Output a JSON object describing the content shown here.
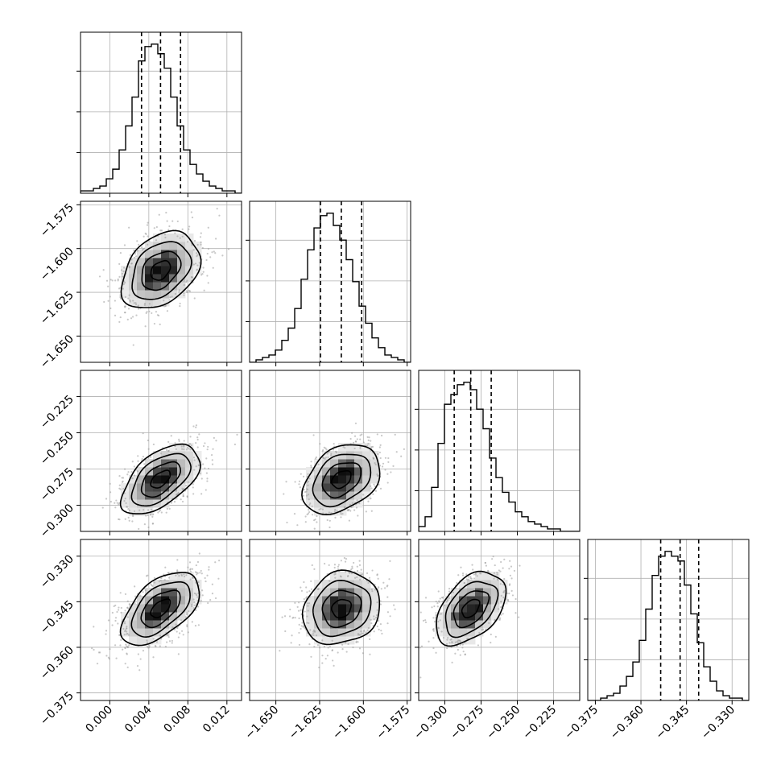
{
  "chart_data": {
    "type": "corner",
    "grid": true,
    "params": [
      {
        "range": [
          -0.003,
          0.0135
        ],
        "ticks": [
          0.0,
          0.004,
          0.008,
          0.012
        ],
        "tick_labels": [
          "0.000",
          "0.004",
          "0.008",
          "0.012"
        ],
        "quantiles": [
          0.00325,
          0.0052,
          0.00725
        ],
        "mean": 0.0052,
        "sd": 0.002,
        "hist_bins": 25,
        "hist_counts": [
          1,
          1,
          2,
          3,
          6,
          10,
          18,
          28,
          40,
          55,
          61,
          62,
          58,
          52,
          40,
          28,
          18,
          12,
          8,
          5,
          3,
          2,
          1,
          1,
          0
        ]
      },
      {
        "range": [
          -1.665,
          -1.573
        ],
        "ticks": [
          -1.65,
          -1.625,
          -1.6,
          -1.575
        ],
        "tick_labels": [
          "−1.650",
          "−1.625",
          "−1.600",
          "−1.575"
        ],
        "quantiles": [
          -1.6245,
          -1.6126,
          -1.601
        ],
        "mean": -1.6125,
        "sd": 0.011,
        "hist_bins": 25,
        "hist_counts": [
          0,
          1,
          2,
          3,
          5,
          9,
          14,
          22,
          34,
          46,
          55,
          60,
          61,
          56,
          50,
          42,
          33,
          23,
          16,
          10,
          6,
          3,
          2,
          1,
          0
        ]
      },
      {
        "range": [
          -0.318,
          -0.207
        ],
        "ticks": [
          -0.3,
          -0.275,
          -0.25,
          -0.225
        ],
        "tick_labels": [
          "−0.300",
          "−0.275",
          "−0.250",
          "−0.225"
        ],
        "quantiles": [
          -0.2935,
          -0.2821,
          -0.268
        ],
        "mean": -0.2821,
        "sd": 0.012,
        "hist_bins": 25,
        "hist_counts": [
          2,
          6,
          18,
          36,
          52,
          56,
          60,
          61,
          58,
          50,
          42,
          30,
          22,
          16,
          12,
          8,
          6,
          4,
          3,
          2,
          1,
          1,
          0,
          0,
          0
        ]
      },
      {
        "range": [
          -0.3775,
          -0.3245
        ],
        "ticks": [
          -0.375,
          -0.36,
          -0.345,
          -0.33
        ],
        "tick_labels": [
          "−0.375",
          "−0.360",
          "−0.345",
          "−0.330"
        ],
        "quantiles": [
          -0.3535,
          -0.3471,
          -0.341
        ],
        "mean": -0.3472,
        "sd": 0.006,
        "hist_bins": 25,
        "hist_counts": [
          0,
          0,
          1,
          2,
          3,
          6,
          10,
          16,
          25,
          38,
          52,
          60,
          62,
          60,
          58,
          48,
          36,
          24,
          14,
          8,
          4,
          2,
          1,
          1,
          0
        ]
      }
    ],
    "correlations": [
      [
        1,
        0.35,
        0.55,
        0.55
      ],
      [
        0.35,
        1,
        0.35,
        0.15
      ],
      [
        0.55,
        0.35,
        1,
        0.45
      ],
      [
        0.55,
        0.15,
        0.45,
        1
      ]
    ],
    "contour_levels_sigma": [
      0.5,
      1.0,
      1.5,
      2.0
    ]
  }
}
